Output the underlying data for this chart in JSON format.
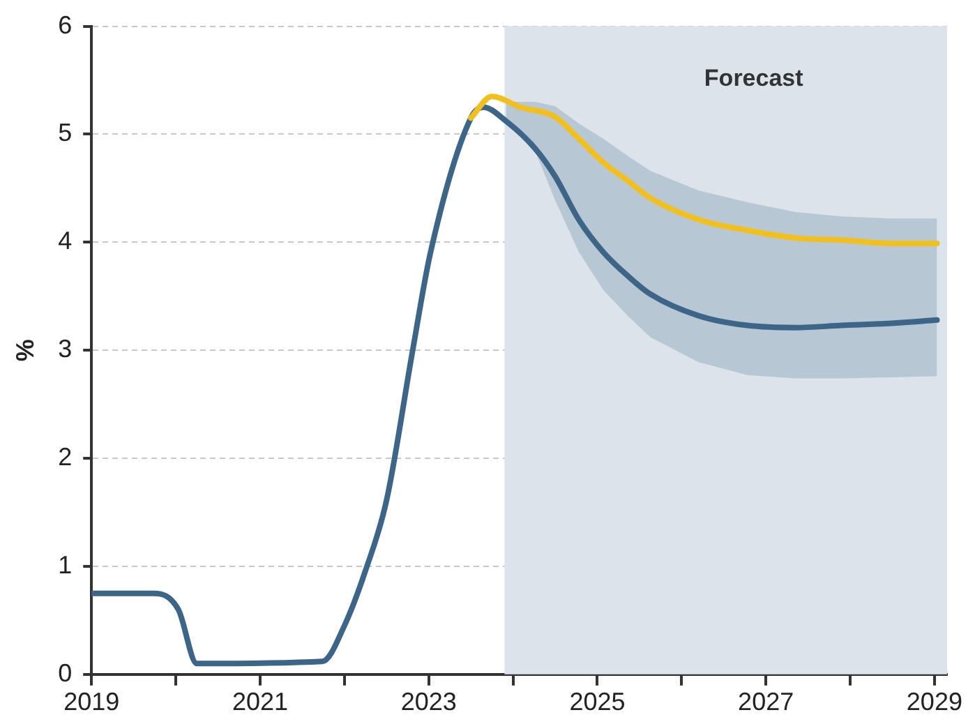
{
  "chart_data": {
    "type": "line",
    "ylabel": "%",
    "xlim": [
      2019,
      2029.15
    ],
    "xticks": [
      2019,
      {
        "value": 2020,
        "label": null
      },
      2021,
      {
        "value": 2022,
        "label": null
      },
      2023,
      {
        "value": 2024,
        "label": null
      },
      2025,
      {
        "value": 2026,
        "label": null
      },
      2027,
      {
        "value": 2028,
        "label": null
      },
      2029
    ],
    "ylim": [
      0,
      6
    ],
    "yticks": [
      0,
      1,
      2,
      3,
      4,
      5,
      6
    ],
    "grid": "y",
    "legend": false,
    "marker": "none",
    "line_style": "solid",
    "bands": [
      {
        "axis": "x",
        "from": 2023.9,
        "to": 2029.15,
        "label": "Forecast",
        "color": "#dce3ea"
      }
    ],
    "series": [
      {
        "color": "#3d6587",
        "x": [
          2019,
          2019.74,
          2020.03,
          2020.25,
          2021.74,
          2022.0,
          2022.25,
          2022.5,
          2022.81,
          2023.02,
          2023.5,
          2023.65,
          2023.92,
          2024.26,
          2024.5,
          2024.78,
          2025.07,
          2025.36,
          2025.63,
          2026.2,
          2026.78,
          2027.35,
          2027.9,
          2028.49,
          2029.03
        ],
        "values": [
          0.75,
          0.75,
          0.6,
          0.1,
          0.12,
          0.45,
          0.96,
          1.61,
          3.0,
          3.9,
          5.15,
          5.25,
          5.12,
          4.87,
          4.61,
          4.21,
          3.91,
          3.69,
          3.52,
          3.32,
          3.23,
          3.21,
          3.23,
          3.25,
          3.28
        ],
        "lower": [
          null,
          null,
          null,
          null,
          null,
          null,
          null,
          null,
          null,
          null,
          null,
          null,
          5.12,
          4.85,
          4.39,
          3.91,
          3.56,
          3.32,
          3.12,
          2.89,
          2.77,
          2.74,
          2.74,
          2.75,
          2.76
        ],
        "upper": [
          null,
          null,
          null,
          null,
          null,
          null,
          null,
          null,
          null,
          null,
          null,
          null,
          5.3,
          5.3,
          5.26,
          5.1,
          4.96,
          4.8,
          4.66,
          4.48,
          4.37,
          4.28,
          4.24,
          4.22,
          4.22
        ]
      },
      {
        "color": "#f2c01e",
        "x": [
          2023.5,
          2023.75,
          2024.09,
          2024.5,
          2024.78,
          2025.07,
          2025.36,
          2025.63,
          2026.2,
          2026.78,
          2027.35,
          2027.9,
          2028.49,
          2029.03
        ],
        "values": [
          5.15,
          5.35,
          5.25,
          5.16,
          4.96,
          4.74,
          4.57,
          4.41,
          4.21,
          4.11,
          4.04,
          4.02,
          3.99,
          3.99
        ]
      }
    ]
  }
}
